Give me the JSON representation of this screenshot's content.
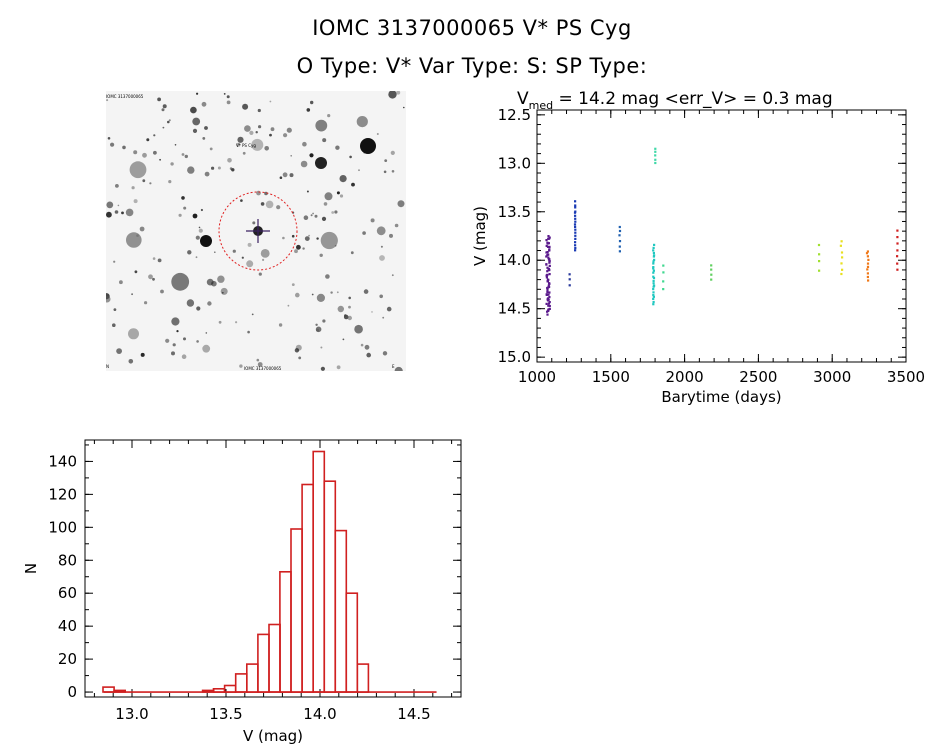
{
  "header": {
    "line1": "IOMC 3137000065    V* PS Cyg",
    "line2": "O Type: V*   Var Type: S:   SP Type:"
  },
  "light_curve_header": {
    "prefix": "V",
    "subscript": "med",
    "rest": " = 14.2 mag <err_V> = 0.3 mag"
  },
  "sky_image": {
    "caption_top_left": "IOMC 3137000065",
    "target_label": "V* PS Cyg",
    "caption_bottom_center": "IOMC 3137000065",
    "caption_bottom_left": "N",
    "caption_bottom_right": "E",
    "circle_color": "#e02020"
  },
  "chart_data": [
    {
      "type": "scatter",
      "title": "V_med = 14.2 mag <err_V> = 0.3 mag",
      "xlabel": "Barytime (days)",
      "ylabel": "V (mag)",
      "xlim": [
        1000,
        3500
      ],
      "ylim": [
        15.05,
        12.45
      ],
      "xticks": [
        1000,
        1500,
        2000,
        2500,
        3000,
        3500
      ],
      "yticks": [
        12.5,
        13.0,
        13.5,
        14.0,
        14.5,
        15.0
      ],
      "ytick_labels": [
        "12.5",
        "13.0",
        "13.5",
        "14.0",
        "14.5",
        "15.0"
      ],
      "groups": [
        {
          "x": 1075,
          "y_min": 13.75,
          "y_max": 14.55,
          "n": 70,
          "color": "#5a1a8c",
          "spread": 25
        },
        {
          "x": 1220,
          "y_min": 14.15,
          "y_max": 14.25,
          "n": 3,
          "color": "#2a3a9c",
          "spread": 3
        },
        {
          "x": 1258,
          "y_min": 13.4,
          "y_max": 13.9,
          "n": 18,
          "color": "#1a3ab4",
          "spread": 3
        },
        {
          "x": 1560,
          "y_min": 13.65,
          "y_max": 13.9,
          "n": 6,
          "color": "#2060b0",
          "spread": 4
        },
        {
          "x": 1790,
          "y_min": 13.85,
          "y_max": 14.45,
          "n": 26,
          "color": "#20c8c0",
          "spread": 8
        },
        {
          "x": 1800,
          "y_min": 12.85,
          "y_max": 13.0,
          "n": 5,
          "color": "#40d8a8",
          "spread": 2
        },
        {
          "x": 1855,
          "y_min": 14.05,
          "y_max": 14.3,
          "n": 4,
          "color": "#40d890",
          "spread": 2
        },
        {
          "x": 2180,
          "y_min": 14.05,
          "y_max": 14.2,
          "n": 4,
          "color": "#60d060",
          "spread": 2
        },
        {
          "x": 2910,
          "y_min": 13.85,
          "y_max": 14.1,
          "n": 4,
          "color": "#a0e030",
          "spread": 2
        },
        {
          "x": 3060,
          "y_min": 13.8,
          "y_max": 14.15,
          "n": 7,
          "color": "#e8e020",
          "spread": 14
        },
        {
          "x": 3240,
          "y_min": 13.9,
          "y_max": 14.2,
          "n": 10,
          "color": "#f07818",
          "spread": 10
        },
        {
          "x": 3440,
          "y_min": 13.7,
          "y_max": 14.1,
          "n": 7,
          "color": "#d02020",
          "spread": 3
        }
      ]
    },
    {
      "type": "bar",
      "subtype": "histogram",
      "xlabel": "V (mag)",
      "ylabel": "N",
      "xlim": [
        12.75,
        14.75
      ],
      "ylim": [
        -3,
        153
      ],
      "xticks": [
        13.0,
        13.5,
        14.0,
        14.5
      ],
      "xtick_labels": [
        "13.0",
        "13.5",
        "14.0",
        "14.5"
      ],
      "yticks": [
        0,
        20,
        40,
        60,
        80,
        100,
        120,
        140
      ],
      "ytick_labels": [
        "0",
        "20",
        "40",
        "60",
        "80",
        "100",
        "120",
        "140"
      ],
      "bin_width": 0.0588,
      "bin_centers": [
        12.875,
        12.934,
        12.993,
        13.052,
        13.11,
        13.169,
        13.228,
        13.287,
        13.346,
        13.405,
        13.463,
        13.522,
        13.581,
        13.64,
        13.699,
        13.758,
        13.816,
        13.875,
        13.934,
        13.993,
        14.052,
        14.11,
        14.169,
        14.228,
        14.287,
        14.346,
        14.405,
        14.463,
        14.522,
        14.581
      ],
      "values": [
        3,
        1,
        0,
        0,
        0,
        0,
        0,
        0,
        0,
        1,
        2,
        4,
        11,
        17,
        35,
        41,
        73,
        99,
        126,
        146,
        128,
        98,
        60,
        17,
        0,
        0,
        0,
        0,
        0,
        0
      ],
      "bar_color": "#d02020"
    }
  ]
}
